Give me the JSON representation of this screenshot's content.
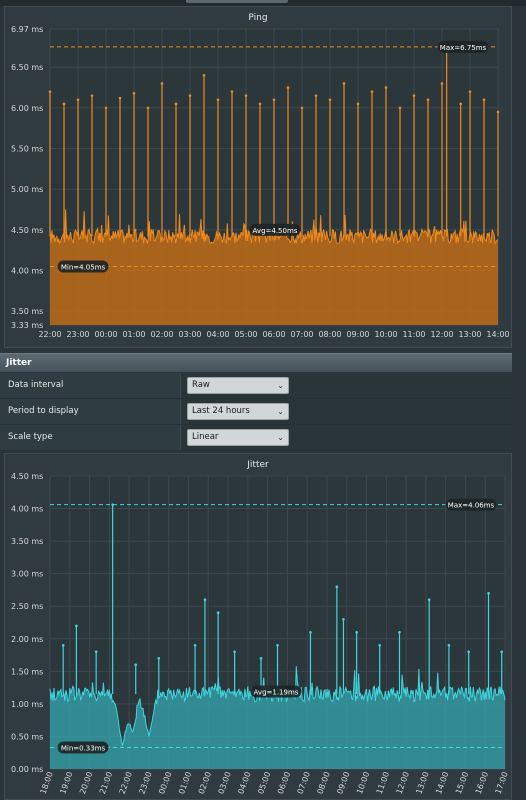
{
  "ping": {
    "title": "Ping",
    "unit": "ms",
    "y_ticks": [
      "6.97 ms",
      "6.50 ms",
      "6.00 ms",
      "5.50 ms",
      "5.00 ms",
      "4.50 ms",
      "4.00 ms",
      "3.50 ms",
      "3.33 ms"
    ],
    "y_tick_values": [
      6.97,
      6.5,
      6.0,
      5.5,
      5.0,
      4.5,
      4.0,
      3.5,
      3.33
    ],
    "x_ticks": [
      "22:00",
      "23:00",
      "00:00",
      "01:00",
      "02:00",
      "03:00",
      "04:00",
      "05:00",
      "06:00",
      "07:00",
      "08:00",
      "09:00",
      "10:00",
      "11:00",
      "12:00",
      "13:00",
      "14:00"
    ],
    "max_label": "Max=6.75ms",
    "avg_label": "Avg=4.50ms",
    "min_label": "Min=4.05ms",
    "color": "#f08a1c"
  },
  "jitter_section": {
    "header": "Jitter",
    "settings": [
      {
        "label": "Data interval",
        "value": "Raw"
      },
      {
        "label": "Period to display",
        "value": "Last 24 hours"
      },
      {
        "label": "Scale type",
        "value": "Linear"
      }
    ]
  },
  "jitter": {
    "title": "Jitter",
    "unit": "ms",
    "y_ticks": [
      "4.50 ms",
      "4.00 ms",
      "3.50 ms",
      "3.00 ms",
      "2.50 ms",
      "2.00 ms",
      "1.50 ms",
      "1.00 ms",
      "0.50 ms",
      "0.00 ms"
    ],
    "y_tick_values": [
      4.5,
      4.0,
      3.5,
      3.0,
      2.5,
      2.0,
      1.5,
      1.0,
      0.5,
      0.0
    ],
    "x_ticks": [
      "18:00",
      "19:00",
      "20:00",
      "21:00",
      "22:00",
      "23:00",
      "00:00",
      "01:00",
      "02:00",
      "03:00",
      "04:00",
      "05:00",
      "06:00",
      "07:00",
      "08:00",
      "09:00",
      "10:00",
      "11:00",
      "12:00",
      "13:00",
      "14:00",
      "15:00",
      "16:00",
      "17:00"
    ],
    "max_label": "Max=4.06ms",
    "avg_label": "Avg=1.19ms",
    "min_label": "Min=0.33ms",
    "color": "#3fd6e0"
  },
  "chart_data": [
    {
      "type": "area",
      "title": "Ping",
      "ylim": [
        3.33,
        6.97
      ],
      "x": [
        "22:00",
        "23:00",
        "00:00",
        "01:00",
        "02:00",
        "03:00",
        "04:00",
        "05:00",
        "06:00",
        "07:00",
        "08:00",
        "09:00",
        "10:00",
        "11:00",
        "12:00",
        "13:00",
        "14:00"
      ],
      "baseline": 4.42,
      "max": 6.75,
      "avg": 4.5,
      "min": 4.05,
      "spikes": [
        {
          "t": "22:00",
          "v": 6.2
        },
        {
          "t": "22:30",
          "v": 6.05
        },
        {
          "t": "23:00",
          "v": 6.1
        },
        {
          "t": "23:30",
          "v": 6.15
        },
        {
          "t": "00:00",
          "v": 6.0
        },
        {
          "t": "00:30",
          "v": 6.12
        },
        {
          "t": "01:00",
          "v": 6.18
        },
        {
          "t": "01:30",
          "v": 6.0
        },
        {
          "t": "02:00",
          "v": 6.3
        },
        {
          "t": "02:30",
          "v": 6.05
        },
        {
          "t": "03:00",
          "v": 6.15
        },
        {
          "t": "03:30",
          "v": 6.4
        },
        {
          "t": "04:00",
          "v": 6.1
        },
        {
          "t": "04:30",
          "v": 6.2
        },
        {
          "t": "05:00",
          "v": 6.15
        },
        {
          "t": "05:30",
          "v": 6.05
        },
        {
          "t": "06:00",
          "v": 6.1
        },
        {
          "t": "06:30",
          "v": 6.25
        },
        {
          "t": "07:00",
          "v": 6.0
        },
        {
          "t": "07:30",
          "v": 6.15
        },
        {
          "t": "08:00",
          "v": 6.1
        },
        {
          "t": "08:30",
          "v": 6.3
        },
        {
          "t": "09:00",
          "v": 6.05
        },
        {
          "t": "09:30",
          "v": 6.2
        },
        {
          "t": "10:00",
          "v": 6.25
        },
        {
          "t": "10:30",
          "v": 6.0
        },
        {
          "t": "11:00",
          "v": 6.15
        },
        {
          "t": "11:30",
          "v": 6.1
        },
        {
          "t": "12:00",
          "v": 6.3
        },
        {
          "t": "12:10",
          "v": 6.75
        },
        {
          "t": "12:40",
          "v": 6.05
        },
        {
          "t": "13:00",
          "v": 6.2
        },
        {
          "t": "13:30",
          "v": 6.1
        },
        {
          "t": "14:00",
          "v": 5.95
        }
      ]
    },
    {
      "type": "area",
      "title": "Jitter",
      "ylim": [
        0.0,
        4.5
      ],
      "x": [
        "18:00",
        "19:00",
        "20:00",
        "21:00",
        "22:00",
        "23:00",
        "00:00",
        "01:00",
        "02:00",
        "03:00",
        "04:00",
        "05:00",
        "06:00",
        "07:00",
        "08:00",
        "09:00",
        "10:00",
        "11:00",
        "12:00",
        "13:00",
        "14:00",
        "15:00",
        "16:00",
        "17:00"
      ],
      "baseline": 1.15,
      "max": 4.06,
      "avg": 1.19,
      "min": 0.33,
      "spikes": [
        {
          "t": "18:40",
          "v": 1.9
        },
        {
          "t": "19:20",
          "v": 2.2
        },
        {
          "t": "20:20",
          "v": 1.8
        },
        {
          "t": "21:10",
          "v": 4.06
        },
        {
          "t": "22:20",
          "v": 1.6
        },
        {
          "t": "23:30",
          "v": 1.7
        },
        {
          "t": "01:20",
          "v": 1.9
        },
        {
          "t": "01:50",
          "v": 2.6
        },
        {
          "t": "02:30",
          "v": 2.4
        },
        {
          "t": "03:20",
          "v": 1.8
        },
        {
          "t": "04:40",
          "v": 1.7
        },
        {
          "t": "05:30",
          "v": 1.9
        },
        {
          "t": "07:10",
          "v": 2.1
        },
        {
          "t": "08:30",
          "v": 2.8
        },
        {
          "t": "08:50",
          "v": 2.3
        },
        {
          "t": "09:30",
          "v": 2.1
        },
        {
          "t": "10:40",
          "v": 1.9
        },
        {
          "t": "11:40",
          "v": 2.1
        },
        {
          "t": "13:10",
          "v": 2.6
        },
        {
          "t": "14:10",
          "v": 1.9
        },
        {
          "t": "15:10",
          "v": 1.8
        },
        {
          "t": "16:10",
          "v": 2.7
        },
        {
          "t": "16:50",
          "v": 1.8
        }
      ],
      "dips": [
        {
          "t": "21:40",
          "v": 0.33
        },
        {
          "t": "22:10",
          "v": 0.55
        },
        {
          "t": "23:00",
          "v": 0.5
        }
      ]
    }
  ]
}
